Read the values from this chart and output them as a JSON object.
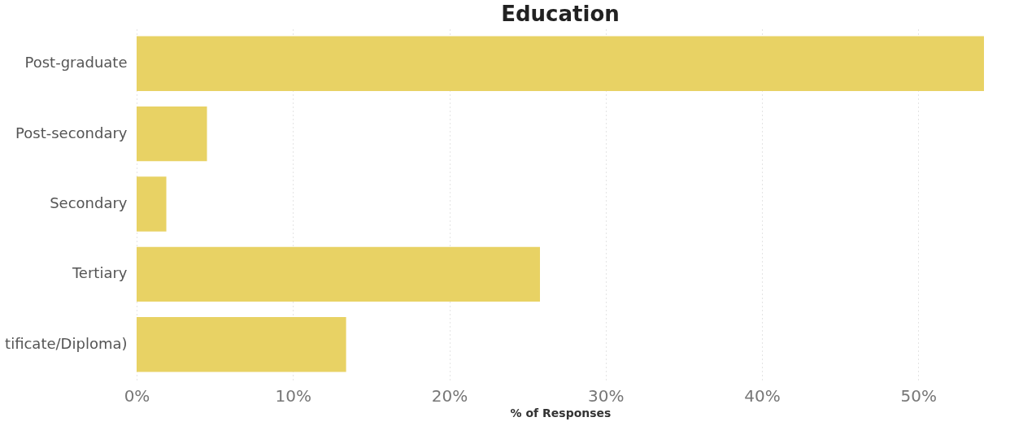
{
  "chart_data": {
    "type": "bar",
    "orientation": "horizontal",
    "title": "Education",
    "xlabel": "% of Responses",
    "categories": [
      "Post-graduate",
      "Post-secondary",
      "Secondary",
      "Tertiary",
      "tificate/Diploma)"
    ],
    "values": [
      54.2,
      4.5,
      1.9,
      25.8,
      13.4
    ],
    "color": "#e8d264",
    "xlim": [
      0,
      54.2
    ],
    "xticks": [
      {
        "value": 0,
        "label": "0%"
      },
      {
        "value": 10,
        "label": "10%"
      },
      {
        "value": 20,
        "label": "20%"
      },
      {
        "value": 30,
        "label": "30%"
      },
      {
        "value": 40,
        "label": "40%"
      },
      {
        "value": 50,
        "label": "50%"
      }
    ],
    "grid": "x"
  }
}
